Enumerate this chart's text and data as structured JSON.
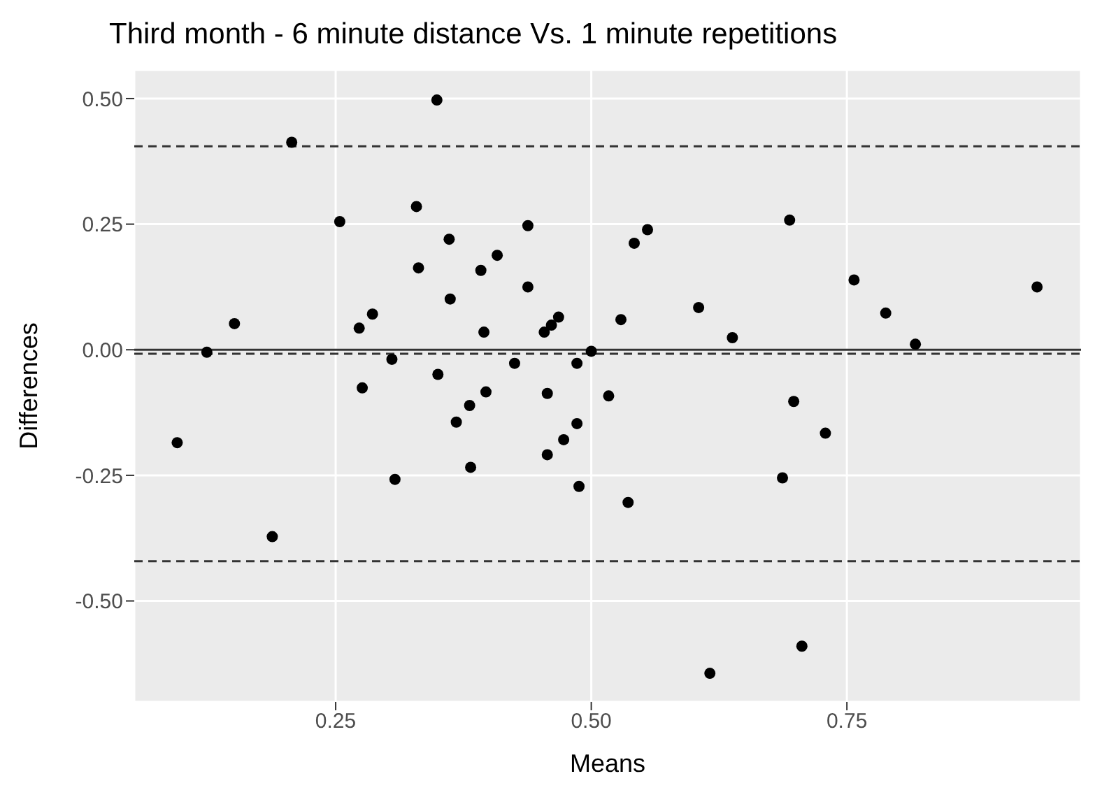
{
  "chart_data": {
    "type": "scatter",
    "title": "Third month - 6 minute distance Vs. 1 minute repetitions",
    "xlabel": "Means",
    "ylabel": "Differences",
    "xlim": [
      0.053,
      0.979
    ],
    "ylim": [
      -0.701,
      0.557
    ],
    "xticks": [
      {
        "value": 0.25,
        "label": "0.25"
      },
      {
        "value": 0.5,
        "label": "0.50"
      },
      {
        "value": 0.75,
        "label": "0.75"
      }
    ],
    "yticks": [
      {
        "value": -0.5,
        "label": "-0.50"
      },
      {
        "value": -0.25,
        "label": "-0.25"
      },
      {
        "value": 0,
        "label": "0.00"
      },
      {
        "value": 0.25,
        "label": "0.25"
      },
      {
        "value": 0.5,
        "label": "0.50"
      }
    ],
    "grid": true,
    "legend": false,
    "marker": "circle",
    "x": [
      0.095,
      0.124,
      0.151,
      0.188,
      0.207,
      0.254,
      0.273,
      0.286,
      0.276,
      0.305,
      0.308,
      0.349,
      0.329,
      0.331,
      0.35,
      0.361,
      0.362,
      0.368,
      0.381,
      0.382,
      0.392,
      0.408,
      0.395,
      0.397,
      0.425,
      0.438,
      0.438,
      0.454,
      0.461,
      0.468,
      0.457,
      0.457,
      0.473,
      0.486,
      0.486,
      0.488,
      0.5,
      0.517,
      0.529,
      0.536,
      0.542,
      0.555,
      0.605,
      0.638,
      0.616,
      0.687,
      0.694,
      0.698,
      0.706,
      0.729,
      0.757,
      0.788,
      0.817,
      0.936
    ],
    "series": [
      {
        "color": "#000000",
        "values": [
          -0.185,
          -0.005,
          0.052,
          -0.372,
          0.413,
          0.255,
          0.043,
          0.071,
          -0.076,
          -0.019,
          -0.258,
          0.497,
          0.285,
          0.163,
          -0.049,
          0.22,
          0.101,
          -0.144,
          -0.111,
          -0.234,
          0.158,
          0.188,
          0.035,
          -0.084,
          -0.027,
          0.247,
          0.125,
          0.035,
          0.049,
          0.065,
          -0.087,
          -0.209,
          -0.179,
          -0.027,
          -0.147,
          -0.272,
          -0.003,
          -0.092,
          0.06,
          -0.304,
          0.212,
          0.239,
          0.084,
          0.024,
          -0.644,
          -0.255,
          0.258,
          -0.103,
          -0.59,
          -0.166,
          0.139,
          0.073,
          0.011,
          0.125
        ]
      }
    ],
    "ref_lines": [
      {
        "axis": "y",
        "value": 0,
        "color": "#333333",
        "line_style": "solid"
      },
      {
        "axis": "y",
        "value": -0.008,
        "color": "#333333",
        "line_style": "dashed"
      },
      {
        "axis": "y",
        "value": 0.405,
        "color": "#333333",
        "line_style": "dashed"
      },
      {
        "axis": "y",
        "value": -0.421,
        "color": "#333333",
        "line_style": "dashed"
      }
    ]
  }
}
